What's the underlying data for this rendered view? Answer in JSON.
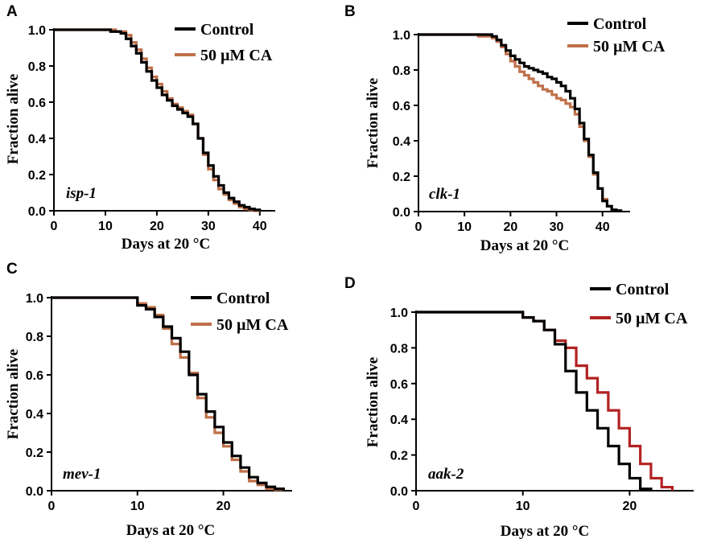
{
  "chart_data": [
    {
      "type": "line",
      "panel": "A",
      "gene": "isp-1",
      "xlabel": "Days at 20 °C",
      "ylabel": "Fraction alive",
      "xlim": [
        0,
        43
      ],
      "ylim": [
        0,
        1
      ],
      "xticks": [
        "0",
        "10",
        "20",
        "30",
        "40"
      ],
      "yticks": [
        "0.0",
        "0.2",
        "0.4",
        "0.6",
        "0.8",
        "1.0"
      ],
      "series": [
        {
          "name": "Control",
          "color": "#000000",
          "x": [
            0,
            11,
            13,
            14,
            15,
            16,
            17,
            18,
            19,
            20,
            21,
            22,
            23,
            24,
            25,
            26,
            27,
            28,
            29,
            30,
            31,
            32,
            33,
            34,
            35,
            36,
            37,
            38,
            39,
            40
          ],
          "y": [
            1.0,
            0.99,
            0.98,
            0.95,
            0.91,
            0.87,
            0.82,
            0.77,
            0.72,
            0.68,
            0.64,
            0.61,
            0.58,
            0.56,
            0.54,
            0.52,
            0.48,
            0.4,
            0.32,
            0.25,
            0.19,
            0.14,
            0.1,
            0.07,
            0.05,
            0.03,
            0.02,
            0.01,
            0.005,
            0.0
          ]
        },
        {
          "name": "50 µM CA",
          "color": "#c0704a",
          "x": [
            0,
            12,
            14,
            15,
            16,
            17,
            18,
            19,
            20,
            21,
            22,
            23,
            24,
            25,
            26,
            27,
            28,
            29,
            30,
            31,
            32,
            33,
            34,
            35,
            36,
            37,
            38,
            39,
            40
          ],
          "y": [
            1.0,
            0.99,
            0.97,
            0.93,
            0.89,
            0.84,
            0.79,
            0.74,
            0.7,
            0.66,
            0.62,
            0.59,
            0.57,
            0.55,
            0.53,
            0.48,
            0.4,
            0.31,
            0.23,
            0.17,
            0.12,
            0.09,
            0.06,
            0.04,
            0.02,
            0.01,
            0.005,
            0.0,
            0.0
          ]
        }
      ]
    },
    {
      "type": "line",
      "panel": "B",
      "gene": "clk-1",
      "xlabel": "Days at 20 °C",
      "ylabel": "Fraction alive",
      "xlim": [
        0,
        46
      ],
      "ylim": [
        0,
        1
      ],
      "xticks": [
        "0",
        "10",
        "20",
        "30",
        "40"
      ],
      "yticks": [
        "0.0",
        "0.2",
        "0.4",
        "0.6",
        "0.8",
        "1.0"
      ],
      "series": [
        {
          "name": "Control",
          "color": "#000000",
          "x": [
            0,
            16,
            17,
            18,
            19,
            20,
            21,
            22,
            23,
            24,
            25,
            26,
            27,
            28,
            29,
            30,
            31,
            32,
            33,
            34,
            35,
            36,
            37,
            38,
            39,
            40,
            41,
            42,
            43,
            44
          ],
          "y": [
            1.0,
            0.99,
            0.97,
            0.94,
            0.91,
            0.88,
            0.86,
            0.84,
            0.82,
            0.81,
            0.8,
            0.79,
            0.78,
            0.76,
            0.75,
            0.73,
            0.71,
            0.68,
            0.64,
            0.58,
            0.5,
            0.41,
            0.32,
            0.22,
            0.13,
            0.06,
            0.03,
            0.01,
            0.005,
            0.0
          ]
        },
        {
          "name": "50 µM CA",
          "color": "#c0704a",
          "x": [
            0,
            13,
            16,
            17,
            18,
            19,
            20,
            21,
            22,
            23,
            24,
            25,
            26,
            27,
            28,
            29,
            30,
            31,
            32,
            33,
            34,
            35,
            36,
            37,
            38,
            39,
            40,
            41,
            42,
            43,
            44
          ],
          "y": [
            1.0,
            0.99,
            0.98,
            0.96,
            0.93,
            0.89,
            0.85,
            0.82,
            0.79,
            0.77,
            0.75,
            0.73,
            0.71,
            0.69,
            0.68,
            0.66,
            0.64,
            0.63,
            0.61,
            0.59,
            0.55,
            0.48,
            0.4,
            0.31,
            0.21,
            0.13,
            0.07,
            0.03,
            0.01,
            0.005,
            0.0
          ]
        }
      ]
    },
    {
      "type": "line",
      "panel": "C",
      "gene": "mev-1",
      "xlabel": "Days at 20 °C",
      "ylabel": "Fraction alive",
      "xlim": [
        0,
        28
      ],
      "ylim": [
        0,
        1
      ],
      "xticks": [
        "0",
        "10",
        "20"
      ],
      "yticks": [
        "0.0",
        "0.2",
        "0.4",
        "0.6",
        "0.8",
        "1.0"
      ],
      "series": [
        {
          "name": "Control",
          "color": "#000000",
          "x": [
            0,
            10,
            11,
            12,
            13,
            14,
            15,
            16,
            17,
            18,
            19,
            20,
            21,
            22,
            23,
            24,
            25,
            26,
            27
          ],
          "y": [
            1.0,
            0.96,
            0.94,
            0.9,
            0.85,
            0.79,
            0.72,
            0.6,
            0.5,
            0.41,
            0.33,
            0.25,
            0.18,
            0.12,
            0.07,
            0.04,
            0.02,
            0.01,
            0.0
          ]
        },
        {
          "name": "50 µM CA",
          "color": "#c0704a",
          "x": [
            0,
            10,
            11,
            12,
            13,
            14,
            15,
            16,
            17,
            18,
            19,
            20,
            21,
            22,
            23,
            24,
            25,
            26,
            27
          ],
          "y": [
            1.0,
            0.97,
            0.95,
            0.91,
            0.84,
            0.76,
            0.69,
            0.61,
            0.48,
            0.38,
            0.3,
            0.23,
            0.16,
            0.1,
            0.05,
            0.03,
            0.01,
            0.005,
            0.0
          ]
        }
      ]
    },
    {
      "type": "line",
      "panel": "D",
      "gene": "aak-2",
      "xlabel": "Days at 20 °C",
      "ylabel": "Fraction alive",
      "xlim": [
        0,
        26
      ],
      "ylim": [
        0,
        1
      ],
      "xticks": [
        "0",
        "10",
        "20"
      ],
      "yticks": [
        "0.0",
        "0.2",
        "0.4",
        "0.6",
        "0.8",
        "1.0"
      ],
      "series": [
        {
          "name": "Control",
          "color": "#000000",
          "x": [
            0,
            10,
            11,
            12,
            13,
            14,
            15,
            16,
            17,
            18,
            19,
            20,
            21,
            22
          ],
          "y": [
            1.0,
            0.97,
            0.95,
            0.9,
            0.82,
            0.67,
            0.55,
            0.45,
            0.35,
            0.25,
            0.15,
            0.07,
            0.01,
            0.0
          ]
        },
        {
          "name": "50 µM CA",
          "color": "#b22222",
          "x": [
            0,
            10,
            11,
            12,
            13,
            14,
            15,
            16,
            17,
            18,
            19,
            20,
            21,
            22,
            23,
            24
          ],
          "y": [
            1.0,
            0.97,
            0.95,
            0.9,
            0.84,
            0.8,
            0.7,
            0.63,
            0.55,
            0.45,
            0.35,
            0.25,
            0.15,
            0.07,
            0.02,
            0.0
          ]
        }
      ]
    }
  ]
}
